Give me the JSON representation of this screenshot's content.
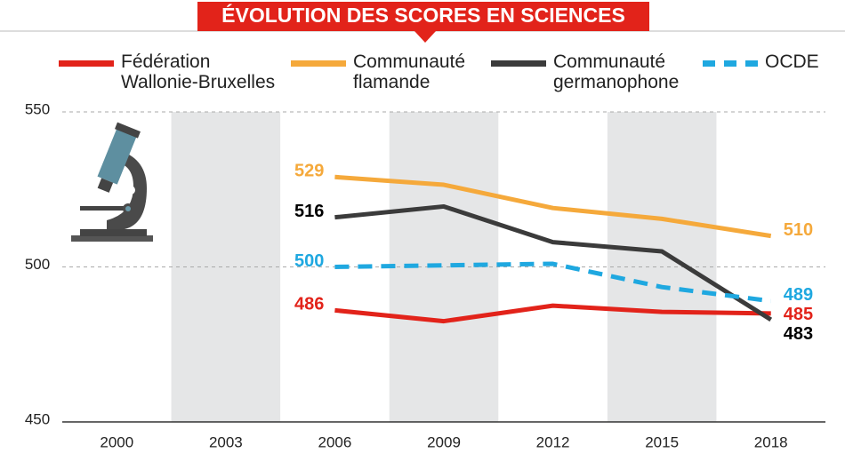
{
  "chart_data": {
    "type": "line",
    "title": "ÉVOLUTION DES SCORES EN SCIENCES",
    "categories": [
      "2000",
      "2003",
      "2006",
      "2009",
      "2012",
      "2015",
      "2018"
    ],
    "series": [
      {
        "name": "Fédération\nWallonie-Bruxelles",
        "color": "#e2231a",
        "values": [
          null,
          null,
          486,
          482.5,
          487.5,
          485.5,
          485
        ]
      },
      {
        "name": "Communauté\nflamande",
        "color": "#f5a93b",
        "values": [
          null,
          null,
          529,
          526.5,
          519,
          515.5,
          510
        ]
      },
      {
        "name": "Communauté\ngermanophone",
        "color": "#3b3b3b",
        "values": [
          null,
          null,
          516,
          519.5,
          508,
          505,
          483
        ]
      },
      {
        "name": "OCDE",
        "color": "#1fa8e0",
        "dashed": true,
        "values": [
          null,
          null,
          500,
          500.5,
          501,
          493.5,
          489
        ]
      }
    ],
    "ylim": [
      450,
      550
    ],
    "yticks": [
      450,
      500,
      550
    ],
    "grid": true
  }
}
